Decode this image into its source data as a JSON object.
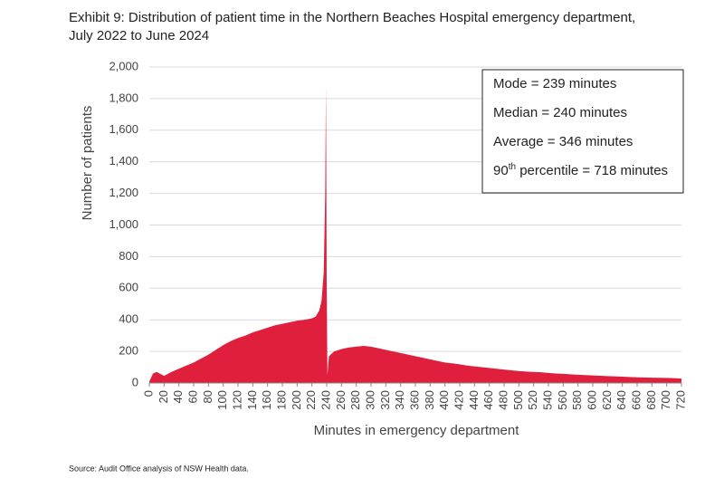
{
  "chart_data": {
    "type": "area",
    "title": [
      "Exhibit 9: Distribution of patient time in the Northern Beaches Hospital emergency department,",
      "July 2022 to June 2024"
    ],
    "x_label": "Minutes in emergency department",
    "y_label": "Number of patients",
    "source": "Source: Audit Office analysis of NSW Health data.",
    "annotations": [
      [
        "Mode = 239 minutes"
      ],
      [
        "Median = 240 minutes"
      ],
      [
        "Average = 346 minutes"
      ],
      [
        "90",
        "th",
        " percentile = 718 minutes"
      ]
    ],
    "color": "#e01f3d",
    "grid": true,
    "x": [
      0,
      5,
      10,
      20,
      30,
      40,
      50,
      60,
      70,
      80,
      90,
      100,
      110,
      120,
      130,
      140,
      150,
      160,
      170,
      180,
      190,
      200,
      210,
      220,
      225,
      230,
      233,
      236,
      238,
      239,
      240,
      241,
      243,
      250,
      260,
      270,
      280,
      290,
      300,
      310,
      320,
      330,
      340,
      350,
      360,
      370,
      380,
      390,
      400,
      410,
      420,
      430,
      440,
      450,
      460,
      470,
      480,
      490,
      500,
      510,
      520,
      530,
      540,
      550,
      560,
      570,
      580,
      590,
      600,
      610,
      620,
      630,
      640,
      650,
      660,
      670,
      680,
      690,
      700,
      710,
      720
    ],
    "values": [
      10,
      60,
      70,
      45,
      70,
      90,
      110,
      130,
      155,
      180,
      210,
      240,
      265,
      285,
      300,
      320,
      335,
      350,
      365,
      375,
      385,
      395,
      400,
      410,
      420,
      460,
      520,
      700,
      1200,
      1880,
      600,
      50,
      170,
      200,
      215,
      225,
      230,
      235,
      230,
      220,
      210,
      200,
      190,
      180,
      170,
      160,
      150,
      140,
      130,
      125,
      118,
      110,
      105,
      100,
      95,
      90,
      85,
      80,
      76,
      72,
      70,
      68,
      64,
      60,
      58,
      55,
      52,
      50,
      48,
      46,
      44,
      42,
      40,
      38,
      36,
      35,
      34,
      33,
      32,
      31,
      28
    ],
    "xlim": [
      0,
      720
    ],
    "xticks": [
      0,
      20,
      40,
      60,
      80,
      100,
      120,
      140,
      160,
      180,
      200,
      220,
      240,
      260,
      280,
      300,
      320,
      340,
      360,
      380,
      400,
      420,
      440,
      460,
      480,
      500,
      520,
      540,
      560,
      580,
      600,
      620,
      640,
      660,
      680,
      700,
      720
    ],
    "ylim": [
      0,
      2000
    ],
    "yticks": [
      0,
      200,
      400,
      600,
      800,
      {
        "value": 1000,
        "label": "1,000"
      },
      {
        "value": 1200,
        "label": "1,200"
      },
      {
        "value": 1400,
        "label": "1,400"
      },
      {
        "value": 1600,
        "label": "1,600"
      },
      {
        "value": 1800,
        "label": "1,800"
      },
      {
        "value": 2000,
        "label": "2,000"
      }
    ]
  }
}
